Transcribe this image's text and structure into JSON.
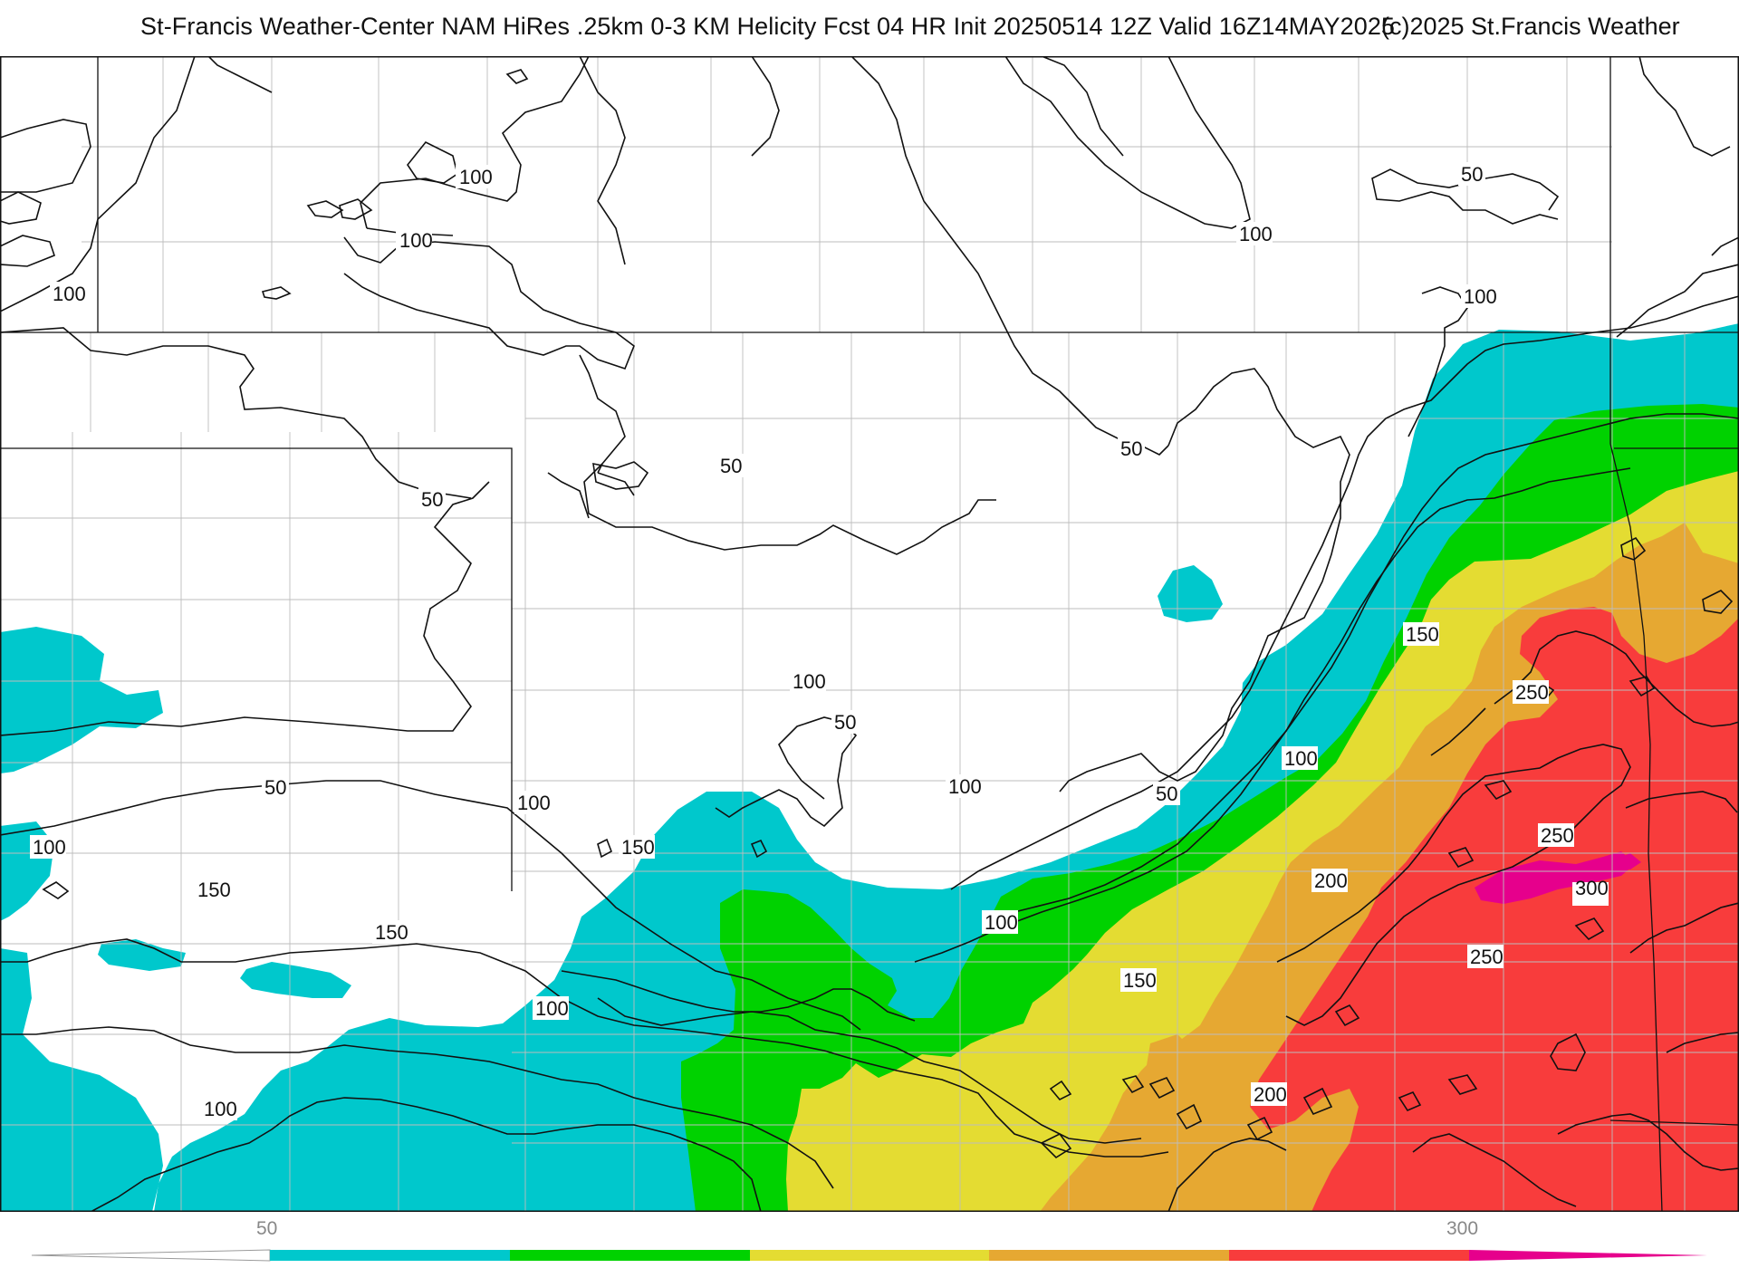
{
  "header": {
    "title": "St-Francis Weather-Center NAM HiRes .25km 0-3 KM Helicity Fcst 04 HR Init 20250514 12Z  Valid 16Z14MAY2025",
    "copyright": "(c)2025 St.Francis Weather"
  },
  "colors": {
    "b50_100": "#00c8cc",
    "b100_150": "#00d200",
    "b150_200": "#e4dc32",
    "b200_250": "#e6a832",
    "b250_300": "#f83c3c",
    "b300_plus": "#e6008c",
    "background": "#ffffff",
    "contour": "#111111",
    "county": "#bdbdbd"
  },
  "contour_labels": [
    {
      "id": "c1",
      "text": "100"
    },
    {
      "id": "c2",
      "text": "100"
    },
    {
      "id": "c3",
      "text": "100"
    },
    {
      "id": "c4",
      "text": "100"
    },
    {
      "id": "c5",
      "text": "50"
    },
    {
      "id": "c6",
      "text": "100"
    },
    {
      "id": "c7",
      "text": "50"
    },
    {
      "id": "c8",
      "text": "50"
    },
    {
      "id": "c9",
      "text": "100"
    },
    {
      "id": "c10",
      "text": "50"
    },
    {
      "id": "c11",
      "text": "50"
    },
    {
      "id": "c12",
      "text": "50"
    },
    {
      "id": "c13",
      "text": "150"
    },
    {
      "id": "c14",
      "text": "100"
    },
    {
      "id": "c15",
      "text": "250"
    },
    {
      "id": "c16",
      "text": "50"
    },
    {
      "id": "c17",
      "text": "100"
    },
    {
      "id": "c18",
      "text": "250"
    },
    {
      "id": "c19",
      "text": "100"
    },
    {
      "id": "c20",
      "text": "150"
    },
    {
      "id": "c21",
      "text": "100"
    },
    {
      "id": "c22",
      "text": "200"
    },
    {
      "id": "c23",
      "text": "300"
    },
    {
      "id": "c24",
      "text": "150"
    },
    {
      "id": "c25",
      "text": "100"
    },
    {
      "id": "c26",
      "text": "250"
    },
    {
      "id": "c27",
      "text": "150"
    },
    {
      "id": "c28",
      "text": "100"
    },
    {
      "id": "c29",
      "text": "150"
    },
    {
      "id": "c30",
      "text": "200"
    },
    {
      "id": "c31",
      "text": "100"
    }
  ],
  "legend": {
    "label_low": "50",
    "label_high": "300",
    "bands": [
      "b50_100",
      "b100_150",
      "b150_200",
      "b200_250",
      "b250_300",
      "b300_plus"
    ]
  }
}
